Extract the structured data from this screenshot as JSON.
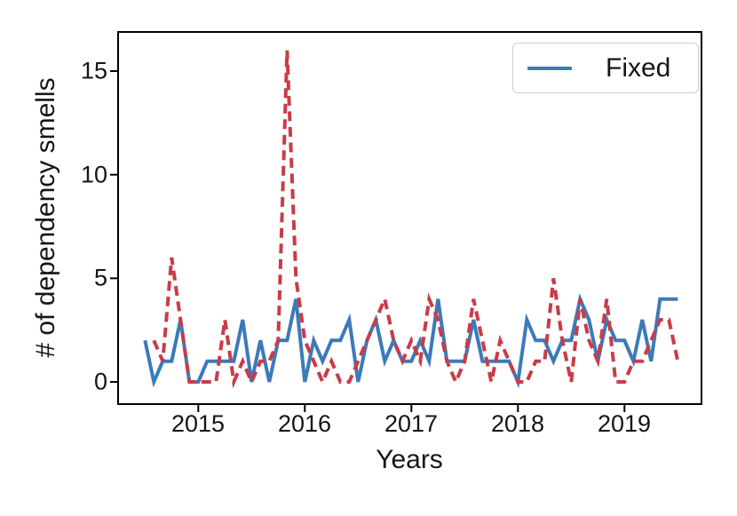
{
  "chart_data": {
    "type": "line",
    "title": "",
    "xlabel": "Years",
    "ylabel": "# of dependency smells",
    "x_tick_labels": [
      "2015",
      "2016",
      "2017",
      "2018",
      "2019"
    ],
    "y_tick_labels": [
      "0",
      "5",
      "10",
      "15"
    ],
    "y_tick_values": [
      0,
      5,
      10,
      15
    ],
    "ylim": [
      -1.1,
      16.9
    ],
    "grid": false,
    "x_unit": "month",
    "x": [
      "2014-07",
      "2014-08",
      "2014-09",
      "2014-10",
      "2014-11",
      "2014-12",
      "2015-01",
      "2015-02",
      "2015-03",
      "2015-04",
      "2015-05",
      "2015-06",
      "2015-07",
      "2015-08",
      "2015-09",
      "2015-10",
      "2015-11",
      "2015-12",
      "2016-01",
      "2016-02",
      "2016-03",
      "2016-04",
      "2016-05",
      "2016-06",
      "2016-07",
      "2016-08",
      "2016-09",
      "2016-10",
      "2016-11",
      "2016-12",
      "2017-01",
      "2017-02",
      "2017-03",
      "2017-04",
      "2017-05",
      "2017-06",
      "2017-07",
      "2017-08",
      "2017-09",
      "2017-10",
      "2017-11",
      "2017-12",
      "2018-01",
      "2018-02",
      "2018-03",
      "2018-04",
      "2018-05",
      "2018-06",
      "2018-07",
      "2018-08",
      "2018-09",
      "2018-10",
      "2018-11",
      "2018-12",
      "2019-01",
      "2019-02",
      "2019-03",
      "2019-04",
      "2019-05",
      "2019-06",
      "2019-07"
    ],
    "series": [
      {
        "name": "Fixed",
        "color": "#3c7ab8",
        "style": "solid",
        "values": [
          2,
          0,
          1,
          1,
          3,
          0,
          0,
          1,
          1,
          1,
          1,
          3,
          0,
          2,
          0,
          2,
          2,
          4,
          0,
          2,
          1,
          2,
          2,
          3,
          0,
          2,
          3,
          1,
          2,
          1,
          1,
          2,
          1,
          4,
          1,
          1,
          1,
          3,
          1,
          1,
          1,
          1,
          0,
          3,
          2,
          2,
          1,
          2,
          2,
          4,
          3,
          1,
          3,
          2,
          2,
          1,
          3,
          1,
          4,
          4,
          4
        ]
      },
      {
        "name": "unlabeled-red-series",
        "color": "#c83c48",
        "style": "dashed",
        "values": [
          null,
          2,
          1,
          6,
          3,
          0,
          0,
          0,
          0,
          3,
          0,
          1,
          0,
          1,
          1,
          2,
          16,
          5,
          2,
          1,
          0,
          1,
          0,
          0,
          1,
          2,
          3,
          4,
          2,
          1,
          2,
          1,
          4,
          3,
          1,
          0,
          1,
          4,
          2,
          0,
          2,
          1,
          0,
          0,
          1,
          1,
          5,
          2,
          0,
          4,
          2,
          1,
          4,
          0,
          0,
          1,
          1,
          2,
          3,
          3,
          1
        ]
      }
    ],
    "legend": {
      "position": "upper right",
      "entries": [
        {
          "label": "Fixed",
          "color": "#3c7ab8",
          "style": "solid"
        }
      ]
    },
    "axis_color": "#000000",
    "background_color": "#ffffff"
  }
}
